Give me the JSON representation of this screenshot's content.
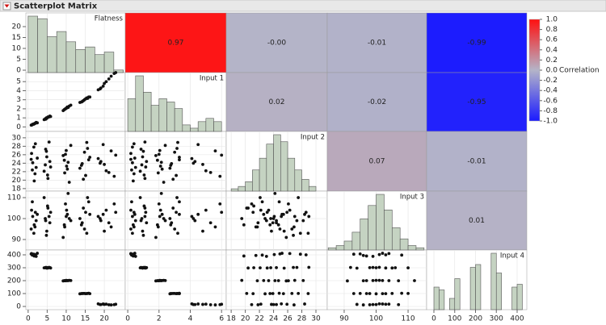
{
  "chart_data": {
    "type": "scatter_matrix",
    "title": "Scatterplot Matrix",
    "variables": [
      {
        "name": "Flatness",
        "xlim": [
          -0.6,
          25.5
        ],
        "xticks": [
          0,
          5,
          10,
          15,
          20
        ],
        "ylim": [
          -1.1,
          26.3
        ],
        "yticks": [
          0,
          5,
          10,
          15,
          20
        ],
        "bins": [
          0,
          2.5,
          5,
          7.5,
          10,
          12.5,
          15,
          17.5,
          20,
          22.5,
          25
        ],
        "counts": [
          22,
          21,
          14,
          16,
          12,
          9,
          10,
          7,
          8,
          1
        ]
      },
      {
        "name": "Input 1",
        "xlim": [
          -0.16,
          6.3
        ],
        "xticks": [
          0,
          2,
          4,
          6
        ],
        "ylim": [
          -0.5,
          6.0
        ],
        "yticks": [
          0,
          1,
          2,
          3,
          4,
          5
        ],
        "bins": [
          0,
          0.5,
          1,
          1.5,
          2,
          2.5,
          3,
          3.5,
          4,
          4.5,
          5,
          5.5,
          6
        ],
        "counts": [
          10,
          17,
          12,
          8,
          10,
          9,
          7,
          2,
          1,
          3,
          4,
          3
        ]
      },
      {
        "name": "Input 2",
        "xlim": [
          17.3,
          31.6
        ],
        "xticks": [
          18,
          20,
          22,
          24,
          26,
          28,
          30
        ],
        "ylim": [
          17.4,
          31.5
        ],
        "yticks": [
          18,
          20,
          22,
          24,
          26,
          28,
          30
        ],
        "bins": [
          18,
          19,
          20,
          21,
          22,
          23,
          24,
          25,
          26,
          27,
          28,
          29,
          30
        ],
        "counts": [
          1,
          2,
          4,
          9,
          14,
          20,
          24,
          21,
          14,
          9,
          5,
          2
        ]
      },
      {
        "name": "Input 3",
        "xlim": [
          84.7,
          115.8
        ],
        "xticks": [
          90,
          100,
          110
        ],
        "ylim": [
          85,
          113.1
        ],
        "yticks": [
          90,
          100,
          110
        ],
        "bins": [
          85,
          87.5,
          90,
          92.5,
          95,
          97.5,
          100,
          102.5,
          105,
          107.5,
          110,
          112.5,
          115
        ],
        "counts": [
          1,
          2,
          4,
          8,
          14,
          20,
          25,
          18,
          10,
          5,
          2,
          1
        ]
      },
      {
        "name": "Input 4",
        "xlim": [
          -35,
          446.6
        ],
        "xticks": [
          0,
          100,
          200,
          300,
          400
        ],
        "ylim": [
          -25,
          437.5
        ],
        "yticks": [
          0,
          100,
          200,
          300,
          400
        ],
        "bins": [
          0,
          25,
          50,
          75,
          100,
          125,
          150,
          175,
          200,
          225,
          250,
          275,
          300,
          325,
          350,
          375,
          400,
          425
        ],
        "counts": [
          8,
          7,
          0,
          4,
          11,
          0,
          0,
          15,
          16,
          0,
          0,
          20,
          13,
          0,
          0,
          8,
          9
        ]
      }
    ],
    "observations": [
      [
        1.2,
        0.3,
        24.1,
        101,
        402
      ],
      [
        1.8,
        0.4,
        21.5,
        96,
        395
      ],
      [
        0.9,
        0.2,
        26.3,
        104,
        410
      ],
      [
        2.1,
        0.5,
        23.0,
        99,
        388
      ],
      [
        1.5,
        0.3,
        27.8,
        93,
        405
      ],
      [
        1.1,
        0.25,
        22.4,
        108,
        398
      ],
      [
        2.4,
        0.45,
        25.2,
        102,
        412
      ],
      [
        1.6,
        0.35,
        19.8,
        97,
        391
      ],
      [
        0.8,
        0.2,
        24.9,
        95,
        407
      ],
      [
        1.9,
        0.4,
        28.6,
        103,
        400
      ],
      [
        4.5,
        0.9,
        23.6,
        100,
        300
      ],
      [
        5.2,
        1.1,
        20.4,
        105,
        298
      ],
      [
        4.8,
        1.0,
        26.8,
        92,
        302
      ],
      [
        5.7,
        1.2,
        24.4,
        98,
        301
      ],
      [
        4.2,
        0.8,
        22.1,
        110,
        299
      ],
      [
        5.5,
        1.1,
        29.0,
        101,
        303
      ],
      [
        4.9,
        0.95,
        25.5,
        94,
        297
      ],
      [
        5.1,
        1.05,
        21.2,
        106,
        300
      ],
      [
        4.6,
        0.85,
        27.3,
        99,
        302
      ],
      [
        5.9,
        1.15,
        23.1,
        103,
        298
      ],
      [
        9.5,
        1.9,
        24.7,
        97,
        200
      ],
      [
        10.3,
        2.2,
        22.6,
        102,
        201
      ],
      [
        9.8,
        2.0,
        26.1,
        107,
        199
      ],
      [
        10.8,
        2.3,
        19.5,
        100,
        202
      ],
      [
        9.2,
        1.8,
        25.8,
        91,
        198
      ],
      [
        10.1,
        2.1,
        23.3,
        104,
        200
      ],
      [
        11.2,
        2.4,
        28.2,
        99,
        201
      ],
      [
        9.6,
        1.95,
        21.7,
        96,
        199
      ],
      [
        10.5,
        2.15,
        24.2,
        112,
        200
      ],
      [
        10.0,
        2.05,
        27.0,
        101,
        202
      ],
      [
        14.2,
        2.8,
        23.9,
        98,
        100
      ],
      [
        15.1,
        3.1,
        21.1,
        103,
        99
      ],
      [
        14.8,
        3.0,
        26.6,
        95,
        101
      ],
      [
        15.9,
        3.3,
        24.8,
        108,
        102
      ],
      [
        13.6,
        2.7,
        22.8,
        100,
        98
      ],
      [
        15.4,
        3.2,
        28.9,
        93,
        100
      ],
      [
        14.5,
        2.9,
        20.2,
        105,
        101
      ],
      [
        16.2,
        3.3,
        25.4,
        102,
        99
      ],
      [
        14.0,
        2.75,
        23.5,
        97,
        100
      ],
      [
        15.6,
        3.15,
        27.5,
        110,
        101
      ],
      [
        19.1,
        4.3,
        24.4,
        99,
        15
      ],
      [
        20.5,
        5.0,
        22.2,
        104,
        18
      ],
      [
        21.8,
        5.6,
        26.9,
        96,
        12
      ],
      [
        18.4,
        4.1,
        25.1,
        101,
        20
      ],
      [
        22.6,
        5.9,
        20.9,
        107,
        14
      ],
      [
        20.0,
        4.8,
        23.7,
        94,
        16
      ],
      [
        19.7,
        4.5,
        28.4,
        102,
        19
      ],
      [
        21.2,
        5.3,
        21.8,
        98,
        13
      ],
      [
        23.0,
        6.0,
        25.9,
        103,
        17
      ],
      [
        18.9,
        4.2,
        24.0,
        100,
        15
      ]
    ],
    "correlations": {
      "values": [
        [
          null,
          0.97,
          0,
          -0.01,
          -0.99
        ],
        [
          null,
          null,
          0.02,
          -0.02,
          -0.95
        ],
        [
          null,
          null,
          null,
          0.07,
          -0.01
        ],
        [
          null,
          null,
          null,
          null,
          0.01
        ],
        [
          null,
          null,
          null,
          null,
          null
        ]
      ],
      "value_labels": [
        [
          null,
          "0.97",
          "-0.00",
          "-0.01",
          "-0.99"
        ],
        [
          null,
          null,
          "0.02",
          "-0.02",
          "-0.95"
        ],
        [
          null,
          null,
          null,
          "0.07",
          "-0.01"
        ],
        [
          null,
          null,
          null,
          null,
          "0.01"
        ],
        [
          null,
          null,
          null,
          null,
          null
        ]
      ]
    },
    "colorbar": {
      "title": "Correlation",
      "lim": [
        -1,
        1
      ],
      "colors": [
        "#1a1aff",
        "#b4b4c8",
        "#ff1010"
      ],
      "ticks": [
        {
          "value": 1,
          "label": "1.0"
        },
        0.8,
        0.6,
        0.4,
        0.2,
        {
          "value": 0,
          "label": "0.0"
        },
        -0.2,
        -0.4,
        -0.6,
        -0.8,
        {
          "value": -1,
          "label": "-1.0"
        }
      ]
    }
  }
}
